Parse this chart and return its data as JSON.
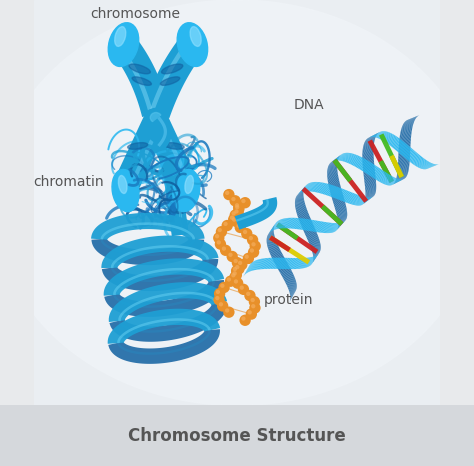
{
  "title": "Chromosome Structure",
  "title_fontsize": 12,
  "title_color": "#555555",
  "bg_color": "#e8eaec",
  "footer_color": "#d5d8dc",
  "label_chromosome": "chromosome",
  "label_chromatin": "chromatin",
  "label_protein": "protein",
  "label_dna": "DNA",
  "label_fontsize": 10,
  "label_color": "#555555",
  "blue_main": "#1e9fd4",
  "blue_dark": "#1060a0",
  "blue_light": "#5cd0f0",
  "blue_mid": "#1880c0",
  "orange_main": "#e8902a",
  "orange_light": "#f5b060",
  "dna_red": "#cc2222",
  "dna_green": "#44bb22",
  "dna_yellow": "#ddcc00",
  "fig_width": 4.74,
  "fig_height": 4.66,
  "dpi": 100
}
